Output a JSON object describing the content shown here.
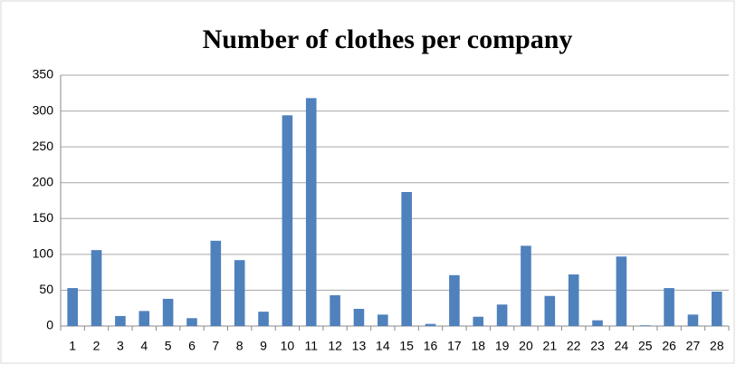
{
  "chart_data": {
    "type": "bar",
    "title": "Number of clothes per company",
    "categories": [
      1,
      2,
      3,
      4,
      5,
      6,
      7,
      8,
      9,
      10,
      11,
      12,
      13,
      14,
      15,
      16,
      17,
      18,
      19,
      20,
      21,
      22,
      23,
      24,
      25,
      26,
      27,
      28
    ],
    "values": [
      53,
      106,
      14,
      21,
      38,
      11,
      119,
      92,
      20,
      294,
      318,
      43,
      24,
      16,
      187,
      3,
      71,
      13,
      30,
      112,
      42,
      72,
      8,
      97,
      1,
      53,
      16,
      48
    ],
    "color": "#4f81bd",
    "ylim": [
      0,
      350
    ],
    "yticks": [
      0,
      50,
      100,
      150,
      200,
      250,
      300,
      350
    ],
    "grid": true
  }
}
